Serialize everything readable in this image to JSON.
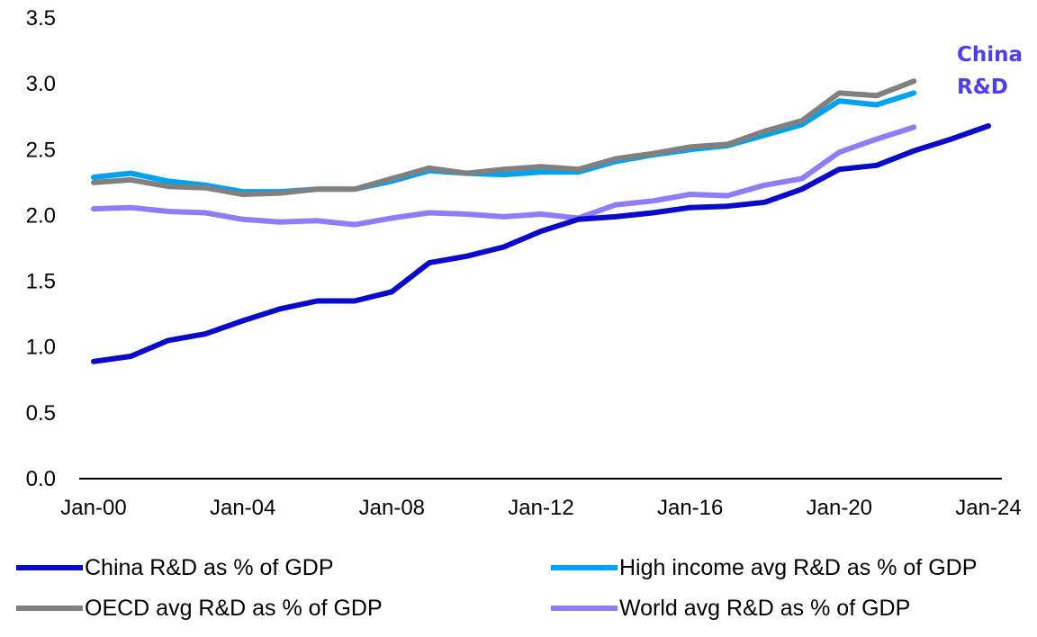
{
  "chart_data": {
    "type": "line",
    "title": "",
    "xlabel": "",
    "ylabel": "",
    "ylim": [
      0,
      3.5
    ],
    "y_ticks": [
      "0.0",
      "0.5",
      "1.0",
      "1.5",
      "2.0",
      "2.5",
      "3.0",
      "3.5"
    ],
    "x_ticks": [
      "Jan-00",
      "Jan-04",
      "Jan-08",
      "Jan-12",
      "Jan-16",
      "Jan-20",
      "Jan-24"
    ],
    "x_range": [
      2000,
      2024
    ],
    "annotation": {
      "line1": "China",
      "line2": "R&D",
      "color": "#4A3DF2"
    },
    "series": [
      {
        "name": "China R&D as % of GDP",
        "color": "#0A0ACD",
        "x": [
          2000,
          2001,
          2002,
          2003,
          2004,
          2005,
          2006,
          2007,
          2008,
          2009,
          2010,
          2011,
          2012,
          2013,
          2014,
          2015,
          2016,
          2017,
          2018,
          2019,
          2020,
          2021,
          2022,
          2023,
          2024
        ],
        "values": [
          0.89,
          0.93,
          1.05,
          1.1,
          1.2,
          1.29,
          1.35,
          1.35,
          1.42,
          1.64,
          1.69,
          1.76,
          1.88,
          1.97,
          1.99,
          2.02,
          2.06,
          2.07,
          2.1,
          2.2,
          2.35,
          2.38,
          2.49,
          2.58,
          2.68
        ]
      },
      {
        "name": "High income avg R&D as % of GDP",
        "color": "#00A2F2",
        "x": [
          2000,
          2001,
          2002,
          2003,
          2004,
          2005,
          2006,
          2007,
          2008,
          2009,
          2010,
          2011,
          2012,
          2013,
          2014,
          2015,
          2016,
          2017,
          2018,
          2019,
          2020,
          2021,
          2022
        ],
        "values": [
          2.29,
          2.32,
          2.26,
          2.23,
          2.18,
          2.18,
          2.2,
          2.2,
          2.26,
          2.34,
          2.32,
          2.31,
          2.33,
          2.33,
          2.41,
          2.46,
          2.5,
          2.53,
          2.61,
          2.69,
          2.87,
          2.84,
          2.93
        ]
      },
      {
        "name": "OECD avg R&D as % of GDP",
        "color": "#808080",
        "x": [
          2000,
          2001,
          2002,
          2003,
          2004,
          2005,
          2006,
          2007,
          2008,
          2009,
          2010,
          2011,
          2012,
          2013,
          2014,
          2015,
          2016,
          2017,
          2018,
          2019,
          2020,
          2021,
          2022
        ],
        "values": [
          2.25,
          2.27,
          2.22,
          2.21,
          2.16,
          2.17,
          2.2,
          2.2,
          2.28,
          2.36,
          2.32,
          2.35,
          2.37,
          2.35,
          2.43,
          2.47,
          2.52,
          2.54,
          2.64,
          2.72,
          2.93,
          2.91,
          3.02
        ]
      },
      {
        "name": "World avg R&D as % of GDP",
        "color": "#8E7CF8",
        "x": [
          2000,
          2001,
          2002,
          2003,
          2004,
          2005,
          2006,
          2007,
          2008,
          2009,
          2010,
          2011,
          2012,
          2013,
          2014,
          2015,
          2016,
          2017,
          2018,
          2019,
          2020,
          2021,
          2022
        ],
        "values": [
          2.05,
          2.06,
          2.03,
          2.02,
          1.97,
          1.95,
          1.96,
          1.93,
          1.98,
          2.02,
          2.01,
          1.99,
          2.01,
          1.98,
          2.08,
          2.11,
          2.16,
          2.15,
          2.23,
          2.28,
          2.48,
          2.58,
          2.67
        ]
      }
    ]
  }
}
